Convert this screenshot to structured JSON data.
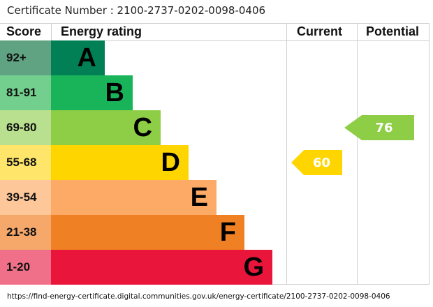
{
  "certificate_label": "Certificate Number : 2100-2737-0202-0098-0406",
  "chart_data": {
    "type": "table",
    "headers": {
      "score": "Score",
      "rating": "Energy rating",
      "current": "Current",
      "potential": "Potential"
    },
    "bands": [
      {
        "score": "92+",
        "letter": "A",
        "color": "#008054",
        "score_color": "#5fa382"
      },
      {
        "score": "81-91",
        "letter": "B",
        "color": "#19b459",
        "score_color": "#72cf8e"
      },
      {
        "score": "69-80",
        "letter": "C",
        "color": "#8dce46",
        "score_color": "#b9e08f"
      },
      {
        "score": "55-68",
        "letter": "D",
        "color": "#ffd500",
        "score_color": "#ffe66a"
      },
      {
        "score": "39-54",
        "letter": "E",
        "color": "#fcaa65",
        "score_color": "#fdc79a"
      },
      {
        "score": "21-38",
        "letter": "F",
        "color": "#ef8023",
        "score_color": "#f5a86a"
      },
      {
        "score": "1-20",
        "letter": "G",
        "color": "#e9153b",
        "score_color": "#f07089"
      }
    ],
    "current": {
      "value": 60,
      "band": "D",
      "color": "#ffd500"
    },
    "potential": {
      "value": 76,
      "band": "C",
      "color": "#8dce46"
    }
  },
  "footer_url": "https://find-energy-certificate.digital.communities.gov.uk/energy-certificate/2100-2737-0202-0098-0406"
}
